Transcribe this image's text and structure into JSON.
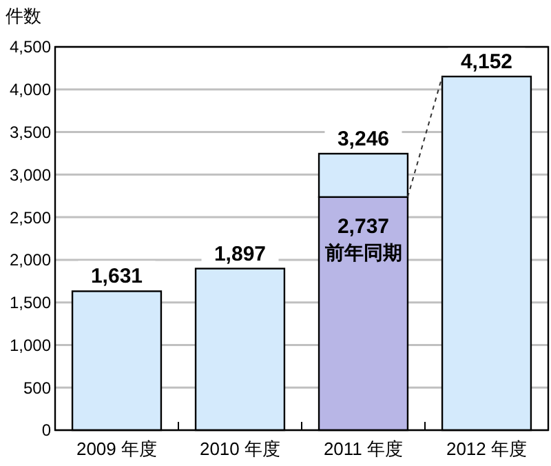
{
  "chart_data": {
    "type": "bar",
    "ylabel": "件数",
    "categories": [
      "2009 年度",
      "2010 年度",
      "2011 年度",
      "2012 年度"
    ],
    "stacked": true,
    "series": [
      {
        "name": "前年同期",
        "color": "#b8b6e6",
        "values": [
          null,
          null,
          2737,
          null
        ],
        "value_labels": [
          null,
          null,
          "2,737",
          null
        ]
      },
      {
        "color": "#d4eafc",
        "values": [
          1631,
          1897,
          509,
          4152
        ],
        "value_labels": [
          "1,631",
          "1,897",
          null,
          "4,152"
        ]
      }
    ],
    "totals": [
      null,
      null,
      "3,246",
      null
    ],
    "ylim": [
      0,
      4500
    ],
    "yticks": [
      {
        "value": 0,
        "label": "0"
      },
      {
        "value": 500,
        "label": "500"
      },
      {
        "value": 1000,
        "label": "1,000"
      },
      {
        "value": 1500,
        "label": "1,500"
      },
      {
        "value": 2000,
        "label": "2,000"
      },
      {
        "value": 2500,
        "label": "2,500"
      },
      {
        "value": 3000,
        "label": "3,000"
      },
      {
        "value": 3500,
        "label": "3,500"
      },
      {
        "value": 4000,
        "label": "4,000"
      },
      {
        "value": 4500,
        "label": "4,500"
      }
    ],
    "grid": "y"
  }
}
